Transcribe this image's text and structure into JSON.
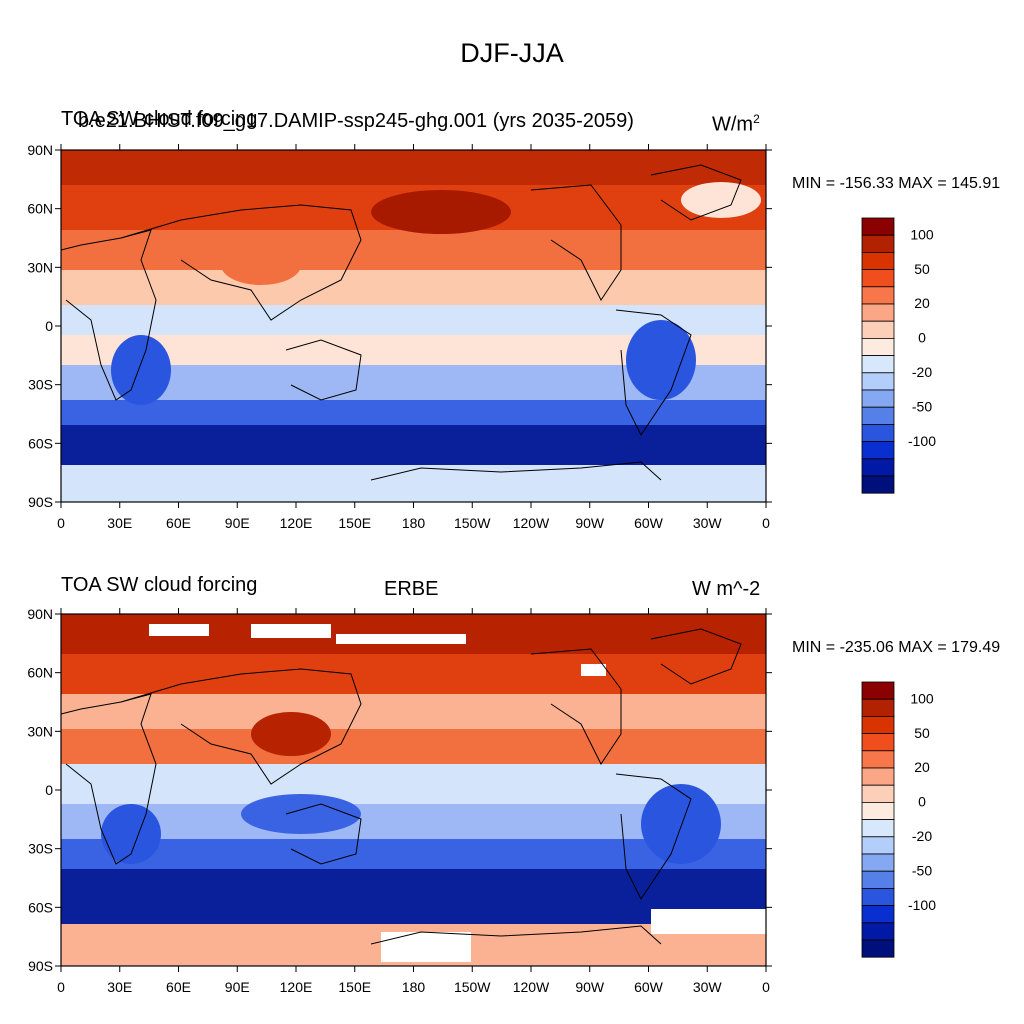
{
  "figure": {
    "title": "DJF-JJA"
  },
  "panels": [
    {
      "left_label": "TOA SW cloud forcing",
      "center_label": "b.e21.BHIST.f09_g17.DAMIP-ssp245-ghg.001 (yrs 2035-2059)",
      "right_label": "W/m",
      "right_label_sup": "2",
      "stats_text": "MIN = -156.33 MAX = 145.91"
    },
    {
      "left_label": "TOA SW cloud forcing",
      "center_label": "ERBE",
      "right_label": "W m^-2",
      "right_label_sup": "",
      "stats_text": "MIN = -235.06 MAX = 179.49"
    }
  ],
  "map_axes": {
    "lon_ticks": [
      "0",
      "30E",
      "60E",
      "90E",
      "120E",
      "150E",
      "180",
      "150W",
      "120W",
      "90W",
      "60W",
      "30W",
      "0"
    ],
    "lat_ticks": [
      "90N",
      "60N",
      "30N",
      "0",
      "30S",
      "60S",
      "90S"
    ]
  },
  "colorbar": {
    "labels": [
      "100",
      "50",
      "20",
      "0",
      "-20",
      "-50",
      "-100"
    ],
    "colors": [
      "#8b0000",
      "#b22200",
      "#d93300",
      "#f04e1c",
      "#f7764a",
      "#fba787",
      "#fccfb8",
      "#fdebe0",
      "#d8e8fc",
      "#b3cefa",
      "#84a8f2",
      "#5580e8",
      "#2a55df",
      "#0a2fd0",
      "#0219a6",
      "#00107a"
    ]
  },
  "map_fill": {
    "colors": {
      "deep_red": "#a81a00",
      "red": "#e04010",
      "orange": "#f27040",
      "light": "#fde4d6",
      "pale_blue": "#d3e4fb",
      "mid_blue": "#6d93ec",
      "blue": "#2a55df",
      "deep_blue": "#0a1f9a",
      "land_line": "#000000"
    }
  }
}
